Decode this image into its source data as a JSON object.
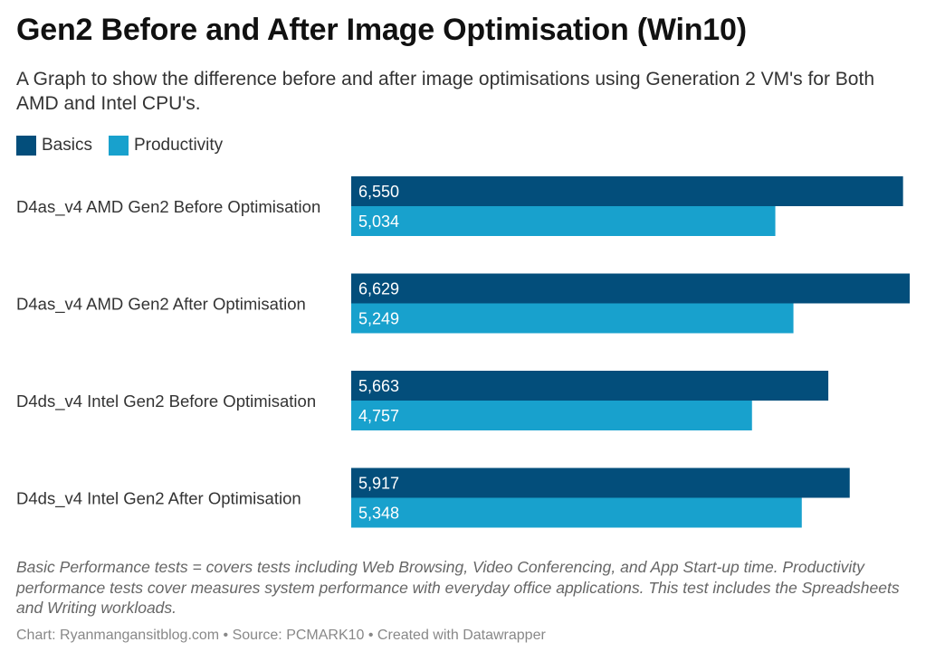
{
  "title": "Gen2 Before and After Image Optimisation (Win10)",
  "subtitle": "A Graph to show the difference before and after image optimisations using Generation 2 VM's for Both AMD and Intel CPU's.",
  "colors": {
    "basics": "#034e7b",
    "productivity": "#18a1cd"
  },
  "chart_data": {
    "type": "bar",
    "orientation": "horizontal",
    "categories": [
      "D4as_v4 AMD Gen2 Before Optimisation",
      "D4as_v4 AMD Gen2 After Optimisation",
      "D4ds_v4 Intel Gen2 Before Optimisation",
      "D4ds_v4 Intel Gen2 After Optimisation"
    ],
    "series": [
      {
        "name": "Basics",
        "values": [
          6550,
          6629,
          5663,
          5917
        ],
        "labels": [
          "6,550",
          "6,629",
          "5,663",
          "5,917"
        ]
      },
      {
        "name": "Productivity",
        "values": [
          5034,
          5249,
          4757,
          5348
        ],
        "labels": [
          "5,034",
          "5,249",
          "4,757",
          "5,348"
        ]
      }
    ],
    "xlim": [
      0,
      6629
    ],
    "legend": "top-left"
  },
  "notes": "Basic Performance tests = covers tests including Web Browsing, Video Conferencing, and App Start-up time. Productivity performance tests cover measures system performance with everyday office applications. This test includes the Spreadsheets and Writing workloads.",
  "footer": "Chart: Ryanmangansitblog.com • Source: PCMARK10 • Created with Datawrapper"
}
